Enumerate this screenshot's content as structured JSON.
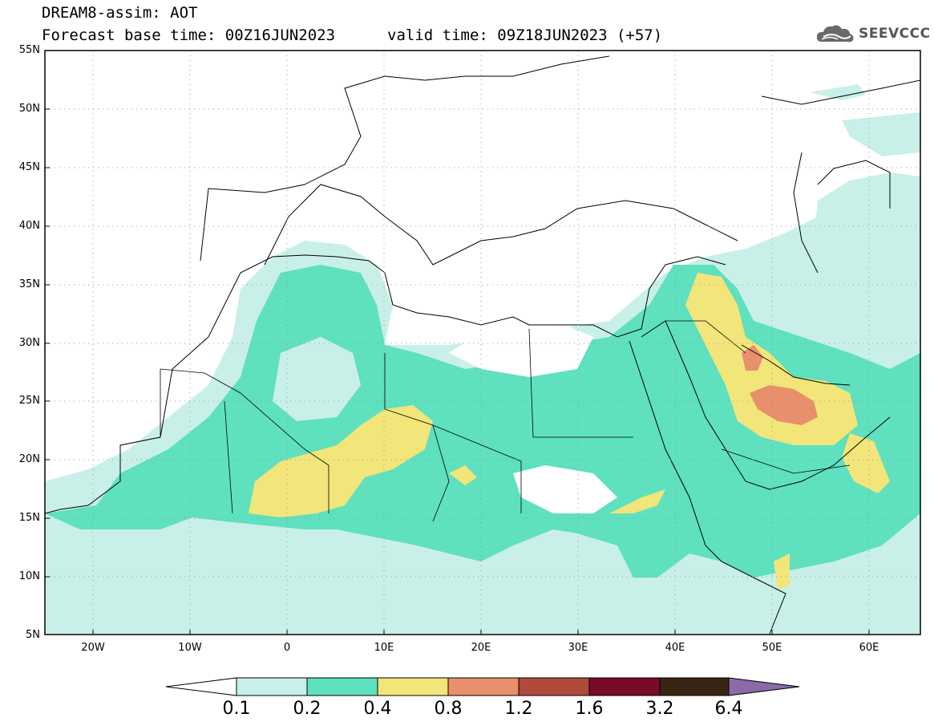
{
  "header": {
    "title_line1": "DREAM8-assim: AOT",
    "title_line2": "Forecast base time: 00Z16JUN2023",
    "valid_time": "valid time: 09Z18JUN2023 (+57)"
  },
  "logo": {
    "text": "SEEVCCC",
    "icon": "cloud-logo-icon"
  },
  "map": {
    "lat_labels": [
      "55N",
      "50N",
      "45N",
      "40N",
      "35N",
      "30N",
      "25N",
      "20N",
      "15N",
      "10N",
      "5N"
    ],
    "lon_labels": [
      "20W",
      "10W",
      "0",
      "10E",
      "20E",
      "30E",
      "40E",
      "50E",
      "60E"
    ],
    "lon_range": [
      -25,
      65
    ],
    "lat_range": [
      5,
      55
    ],
    "gridlines": true
  },
  "colorbar": {
    "levels": [
      "0.1",
      "0.2",
      "0.4",
      "0.8",
      "1.2",
      "1.6",
      "3.2",
      "6.4"
    ],
    "colors": [
      "#c8f0e8",
      "#5fe0bf",
      "#f2e57a",
      "#e88f6c",
      "#b04a3d",
      "#7a0a2a",
      "#3a2414",
      "#8a6aa8"
    ]
  }
}
